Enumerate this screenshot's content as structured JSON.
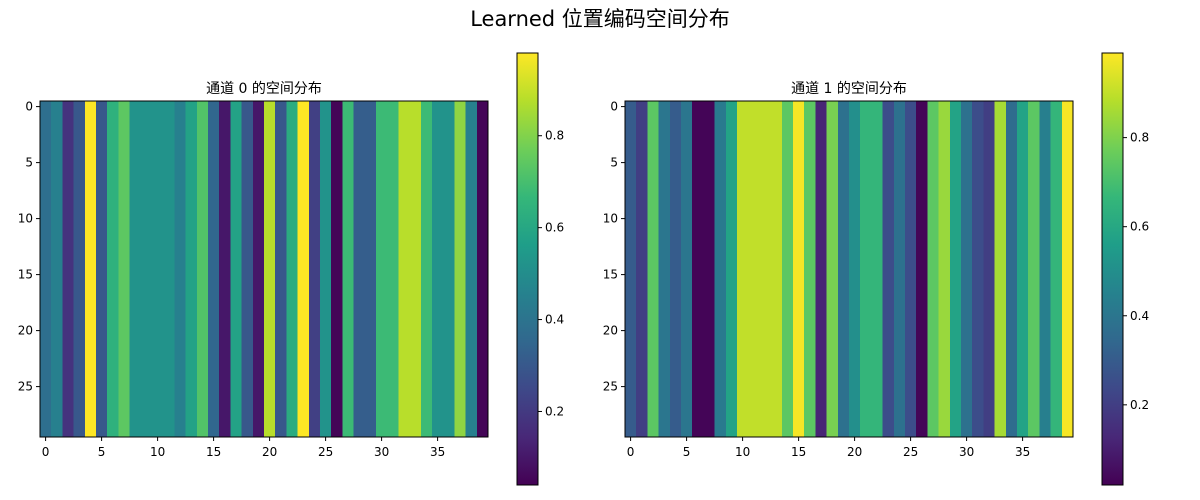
{
  "figure": {
    "title": "Learned 位置编码空间分布"
  },
  "chart_data": [
    {
      "type": "heatmap",
      "title": "通道 0 的空间分布",
      "xlabel": "",
      "ylabel": "",
      "rows": 30,
      "cols": 40,
      "note": "values are constant along rows; one value per column",
      "column_values": [
        0.38,
        0.45,
        0.18,
        0.3,
        0.98,
        0.3,
        0.64,
        0.74,
        0.52,
        0.52,
        0.52,
        0.52,
        0.45,
        0.58,
        0.72,
        0.35,
        0.1,
        0.58,
        0.3,
        0.1,
        0.88,
        0.3,
        0.62,
        0.98,
        0.22,
        0.52,
        0.05,
        0.68,
        0.32,
        0.32,
        0.68,
        0.68,
        0.88,
        0.88,
        0.68,
        0.52,
        0.52,
        0.82,
        0.45,
        0.05
      ],
      "xticks": [
        0,
        5,
        10,
        15,
        20,
        25,
        30,
        35
      ],
      "yticks": [
        0,
        5,
        10,
        15,
        20,
        25
      ],
      "xlim": [
        -0.5,
        39.5
      ],
      "ylim": [
        29.5,
        -0.5
      ],
      "colormap": "viridis",
      "colorbar": {
        "vmin": 0.04,
        "vmax": 0.98,
        "ticks": [
          0.2,
          0.4,
          0.6,
          0.8
        ]
      }
    },
    {
      "type": "heatmap",
      "title": "通道 1 的空间分布",
      "xlabel": "",
      "ylabel": "",
      "rows": 30,
      "cols": 40,
      "note": "values are constant along rows; one value per column",
      "column_values": [
        0.3,
        0.2,
        0.74,
        0.4,
        0.3,
        0.4,
        0.03,
        0.03,
        0.42,
        0.58,
        0.9,
        0.9,
        0.9,
        0.9,
        0.74,
        0.98,
        0.74,
        0.12,
        0.79,
        0.38,
        0.5,
        0.66,
        0.66,
        0.25,
        0.38,
        0.25,
        0.03,
        0.74,
        0.84,
        0.58,
        0.38,
        0.25,
        0.2,
        0.86,
        0.36,
        0.58,
        0.74,
        0.44,
        0.66,
        0.98
      ],
      "xticks": [
        0,
        5,
        10,
        15,
        20,
        25,
        30,
        35
      ],
      "yticks": [
        0,
        5,
        10,
        15,
        20,
        25
      ],
      "xlim": [
        -0.5,
        39.5
      ],
      "ylim": [
        29.5,
        -0.5
      ],
      "colormap": "viridis",
      "colorbar": {
        "vmin": 0.02,
        "vmax": 0.99,
        "ticks": [
          0.2,
          0.4,
          0.6,
          0.8
        ]
      }
    }
  ]
}
